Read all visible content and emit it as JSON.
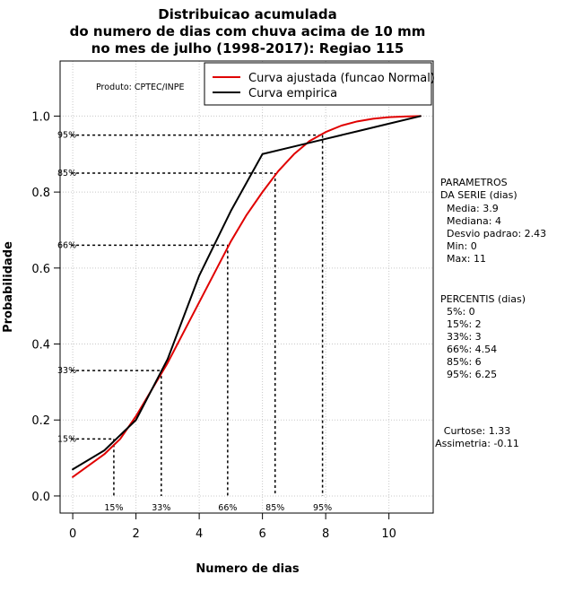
{
  "chart_data": {
    "type": "line",
    "title": [
      "Distribuicao acumulada",
      "do numero de dias com chuva acima de 10 mm",
      "no mes de julho (1998-2017): Regiao 115"
    ],
    "xlabel": "Numero de dias",
    "ylabel": "Probabilidade",
    "xlim": [
      -0.4,
      11.4
    ],
    "ylim": [
      -0.045,
      1.145
    ],
    "x_ticks": [
      0,
      2,
      4,
      6,
      8,
      10
    ],
    "y_ticks": [
      0.0,
      0.2,
      0.4,
      0.6,
      0.8,
      1.0
    ],
    "x_tick_labels": [
      "0",
      "2",
      "4",
      "6",
      "8",
      "10"
    ],
    "y_tick_labels": [
      "0.0",
      "0.2",
      "0.4",
      "0.6",
      "0.8",
      "1.0"
    ],
    "grid": true,
    "product_label": "Produto: CPTEC/INPE",
    "legend": {
      "position": "top-right",
      "entries": [
        {
          "label": "Curva ajustada (funcao Normal)",
          "color": "#e00000"
        },
        {
          "label": "Curva empirica",
          "color": "#000000"
        }
      ]
    },
    "series": [
      {
        "name": "Curva ajustada (funcao Normal)",
        "color": "#e00000",
        "x": [
          0,
          0.5,
          1,
          1.5,
          2,
          2.5,
          3,
          3.5,
          4,
          4.5,
          5,
          5.5,
          6,
          6.5,
          7,
          7.5,
          8,
          8.5,
          9,
          9.5,
          10,
          10.5,
          11
        ],
        "y": [
          0.05,
          0.08,
          0.11,
          0.15,
          0.21,
          0.28,
          0.35,
          0.43,
          0.51,
          0.59,
          0.67,
          0.74,
          0.8,
          0.855,
          0.9,
          0.935,
          0.958,
          0.975,
          0.986,
          0.993,
          0.997,
          0.999,
          1.0
        ]
      },
      {
        "name": "Curva empirica",
        "color": "#000000",
        "x": [
          0,
          1,
          2,
          3,
          4,
          5,
          6,
          7,
          8,
          9,
          10,
          11
        ],
        "y": [
          0.07,
          0.12,
          0.2,
          0.36,
          0.58,
          0.75,
          0.9,
          0.92,
          0.94,
          0.96,
          0.98,
          1.0
        ]
      }
    ],
    "percentile_markers": [
      {
        "label": "15%",
        "p": 0.15,
        "x": 1.3
      },
      {
        "label": "33%",
        "p": 0.33,
        "x": 2.8
      },
      {
        "label": "66%",
        "p": 0.66,
        "x": 4.9
      },
      {
        "label": "85%",
        "p": 0.85,
        "x": 6.4
      },
      {
        "label": "95%",
        "p": 0.95,
        "x": 7.9
      }
    ],
    "parametros": {
      "title_lines": [
        "PARAMETROS",
        "DA SERIE (dias)"
      ],
      "items": [
        "Media: 3.9",
        "Mediana: 4",
        "Desvio padrao: 2.43",
        "Min: 0",
        "Max: 11"
      ]
    },
    "percentis": {
      "title": "PERCENTIS (dias)",
      "items": [
        "5%: 0",
        "15%: 2",
        "33%: 3",
        "66%: 4.54",
        "85%: 6",
        "95%: 6.25"
      ]
    },
    "stats": [
      "Curtose: 1.33",
      "Assimetria: -0.11"
    ]
  }
}
